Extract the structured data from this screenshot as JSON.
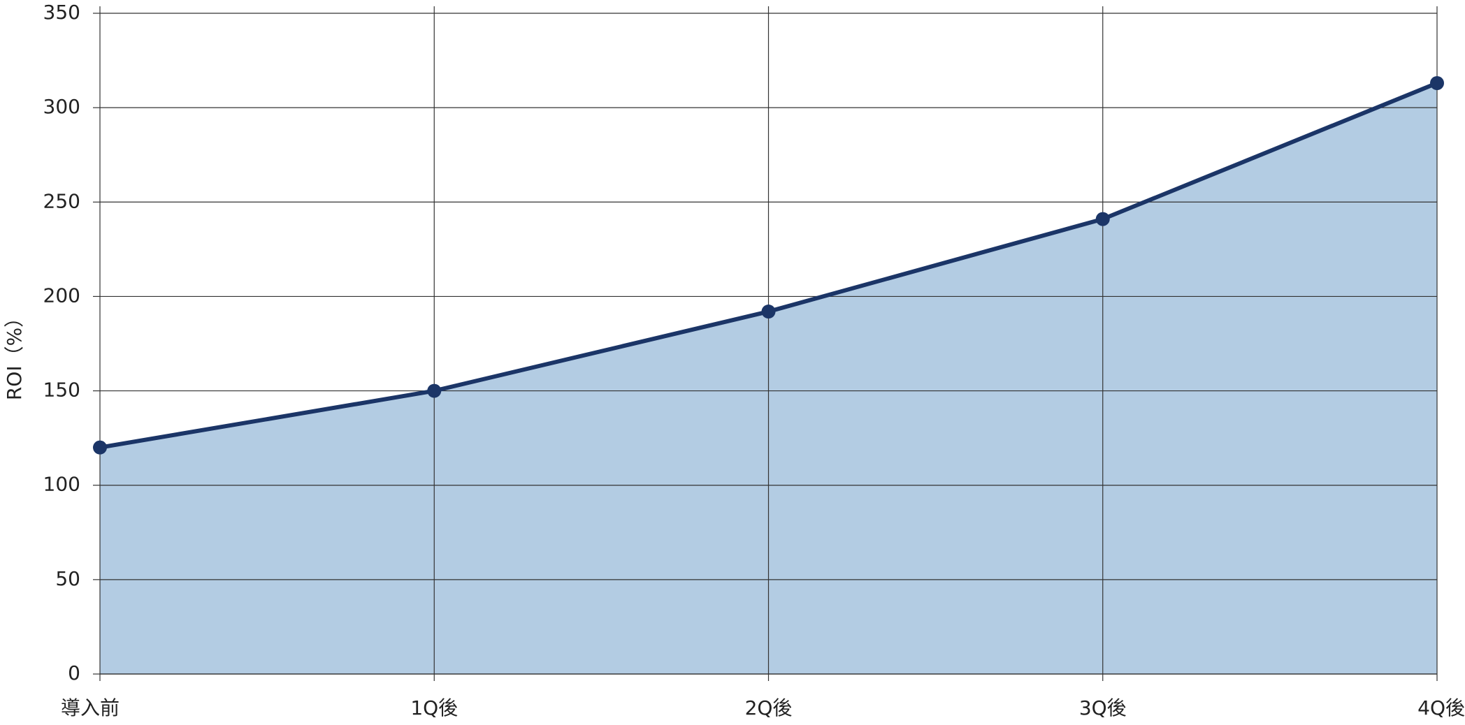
{
  "chart_data": {
    "type": "area",
    "y_label": "ROI（%）",
    "categories": [
      "導入前",
      "1Q後",
      "2Q後",
      "3Q後",
      "4Q後"
    ],
    "values": [
      120,
      150,
      192,
      241,
      313
    ],
    "color": "#1b3567",
    "area_color": "#b3cce3",
    "ylim": [
      0,
      350
    ],
    "yticks": [
      0,
      50,
      100,
      150,
      200,
      250,
      300,
      350
    ],
    "grid": true
  }
}
